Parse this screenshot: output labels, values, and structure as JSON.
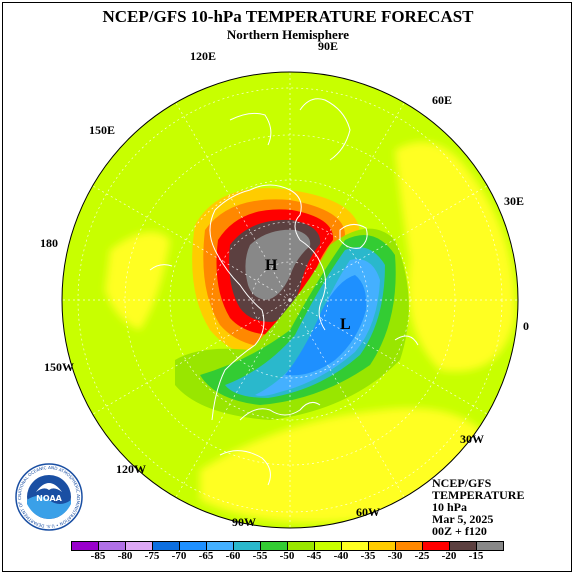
{
  "header": {
    "title": "NCEP/GFS 10-hPa TEMPERATURE FORECAST",
    "subtitle": "Northern Hemisphere"
  },
  "map": {
    "projection": "polar stereographic",
    "longitude_labels": [
      "90E",
      "60E",
      "30E",
      "0",
      "30W",
      "60W",
      "90W",
      "120W",
      "150W",
      "180",
      "150E",
      "120E"
    ],
    "markers": {
      "high": "H",
      "low": "L"
    },
    "colors": {
      "background": "#c8ff00",
      "coast": "#ffffff"
    }
  },
  "info": {
    "line1": "NCEP/GFS",
    "line2": "TEMPERATURE",
    "line3": "10 hPa",
    "line4": "Mar 5, 2025",
    "line5": "00Z + f120"
  },
  "logo": {
    "text": "NOAA",
    "ring_text": "NATIONAL OCEANIC AND ATMOSPHERIC ADMINISTRATION • U.S. DEPARTMENT OF COMMERCE"
  },
  "legend": {
    "labels": [
      "-85",
      "-80",
      "-75",
      "-70",
      "-65",
      "-60",
      "-55",
      "-50",
      "-45",
      "-40",
      "-35",
      "-30",
      "-25",
      "-20",
      "-15"
    ],
    "colors": [
      "#9900cc",
      "#b070e6",
      "#dda8f5",
      "#0d6fe0",
      "#1e90ff",
      "#44b0ff",
      "#2ab8cc",
      "#33cc33",
      "#99e600",
      "#c8ff00",
      "#ffff22",
      "#ffcc00",
      "#ff8800",
      "#ff0000",
      "#5c4040",
      "#888888"
    ]
  }
}
